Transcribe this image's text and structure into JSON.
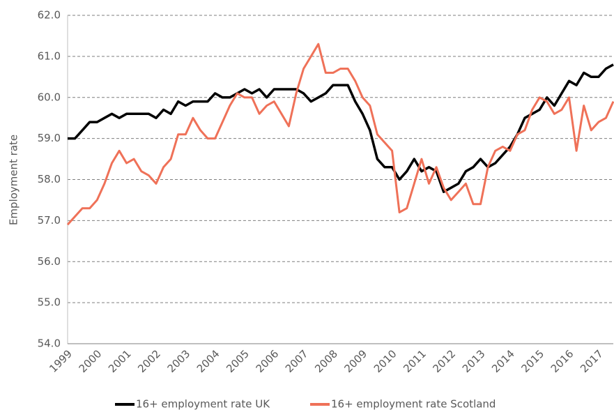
{
  "chart_data": {
    "type": "line",
    "y_label": "Employment rate",
    "categories": [
      "1999",
      null,
      null,
      null,
      "2000",
      null,
      null,
      null,
      "2001",
      null,
      null,
      null,
      "2002",
      null,
      null,
      null,
      "2003",
      null,
      null,
      null,
      "2004",
      null,
      null,
      null,
      "2005",
      null,
      null,
      null,
      "2006",
      null,
      null,
      null,
      "2007",
      null,
      null,
      null,
      "2008",
      null,
      null,
      null,
      "2009",
      null,
      null,
      null,
      "2010",
      null,
      null,
      null,
      "2011",
      null,
      null,
      null,
      "2012",
      null,
      null,
      null,
      "2013",
      null,
      null,
      null,
      "2014",
      null,
      null,
      null,
      "2015",
      null,
      null,
      null,
      "2016",
      null,
      null,
      null,
      "2017",
      null,
      null
    ],
    "series": [
      {
        "name": "16+ employment rate UK",
        "color": "#000000",
        "values": [
          59.0,
          59.0,
          59.2,
          59.4,
          59.4,
          59.5,
          59.6,
          59.5,
          59.6,
          59.6,
          59.6,
          59.6,
          59.5,
          59.7,
          59.6,
          59.9,
          59.8,
          59.9,
          59.9,
          59.9,
          60.1,
          60.0,
          60.0,
          60.1,
          60.2,
          60.1,
          60.2,
          60.0,
          60.2,
          60.2,
          60.2,
          60.2,
          60.1,
          59.9,
          60.0,
          60.1,
          60.3,
          60.3,
          60.3,
          59.9,
          59.6,
          59.2,
          58.5,
          58.3,
          58.3,
          58.0,
          58.2,
          58.5,
          58.2,
          58.3,
          58.2,
          57.7,
          57.8,
          57.9,
          58.2,
          58.3,
          58.5,
          58.3,
          58.4,
          58.6,
          58.8,
          59.1,
          59.5,
          59.6,
          59.7,
          60.0,
          59.8,
          60.1,
          60.4,
          60.3,
          60.6,
          60.5,
          60.5,
          60.7,
          60.8
        ]
      },
      {
        "name": "16+ employment rate Scotland",
        "color": "#ef7158",
        "values": [
          56.9,
          57.1,
          57.3,
          57.3,
          57.5,
          57.9,
          58.4,
          58.7,
          58.4,
          58.5,
          58.2,
          58.1,
          57.9,
          58.3,
          58.5,
          59.1,
          59.1,
          59.5,
          59.2,
          59.0,
          59.0,
          59.4,
          59.8,
          60.1,
          60.0,
          60.0,
          59.6,
          59.8,
          59.9,
          59.6,
          59.3,
          60.1,
          60.7,
          61.0,
          61.3,
          60.6,
          60.6,
          60.7,
          60.7,
          60.4,
          60.0,
          59.8,
          59.1,
          58.9,
          58.7,
          57.2,
          57.3,
          57.9,
          58.5,
          57.9,
          58.3,
          57.8,
          57.5,
          57.7,
          57.9,
          57.4,
          57.4,
          58.3,
          58.7,
          58.8,
          58.7,
          59.1,
          59.2,
          59.7,
          60.0,
          59.9,
          59.6,
          59.7,
          60.0,
          58.7,
          59.8,
          59.2,
          59.4,
          59.5,
          59.9
        ]
      }
    ],
    "ylim": [
      54,
      62
    ],
    "yticks": [
      {
        "value": 54,
        "label": "54.0"
      },
      {
        "value": 55,
        "label": "55.0"
      },
      {
        "value": 56,
        "label": "56.0"
      },
      {
        "value": 57,
        "label": "57.0"
      },
      {
        "value": 58,
        "label": "58.0"
      },
      {
        "value": 59,
        "label": "59.0"
      },
      {
        "value": 60,
        "label": "60.0"
      },
      {
        "value": 61,
        "label": "61.0"
      },
      {
        "value": 62,
        "label": "62.0"
      }
    ],
    "grid": true,
    "legend": "bottom"
  }
}
